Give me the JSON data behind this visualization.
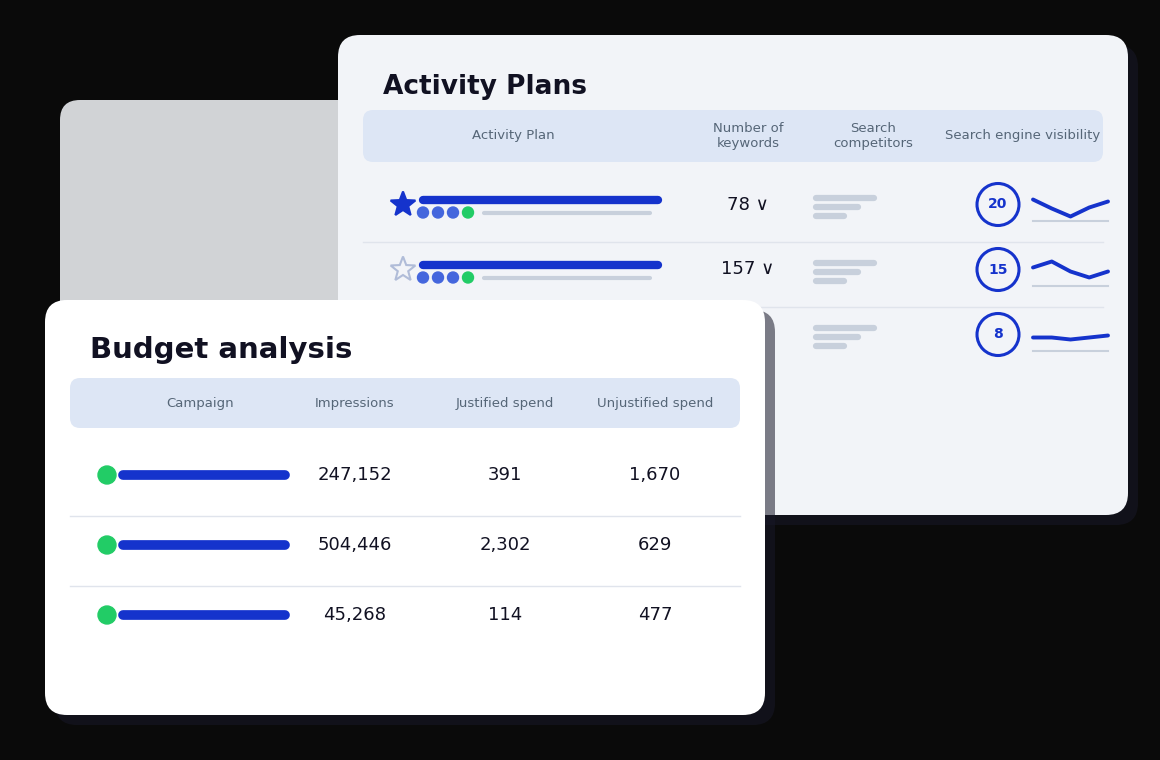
{
  "bg_color": "#0a0a0a",
  "activity_title": "Activity Plans",
  "activity_header_bg": "#dde6f5",
  "activity_headers": [
    "Activity Plan",
    "Number of\nkeywords",
    "Search\ncompetitors",
    "Search engine visibility"
  ],
  "activity_rows": [
    {
      "star_filled": true,
      "keywords": "78 ∨",
      "circle_num": "20"
    },
    {
      "star_filled": false,
      "keywords": "157 ∨",
      "circle_num": "15"
    },
    {
      "star_filled": false,
      "keywords": "",
      "circle_num": "8"
    }
  ],
  "budget_title": "Budget analysis",
  "budget_header_bg": "#dde6f5",
  "budget_headers": [
    "Campaign",
    "Impressions",
    "Justified spend",
    "Unjustified spend"
  ],
  "budget_rows": [
    {
      "impressions": "247,152",
      "justified": "391",
      "unjustified": "1,670"
    },
    {
      "impressions": "504,446",
      "justified": "2,302",
      "unjustified": "629"
    },
    {
      "impressions": "45,268",
      "justified": "114",
      "unjustified": "477"
    }
  ],
  "blue_dark": "#1533cc",
  "blue_mid": "#2244dd",
  "green_dot": "#22cc66",
  "star_blue": "#1533cc",
  "star_light": "#b0bcd8",
  "bar_blue": "#1533cc",
  "dot_blue": "#4466dd",
  "dot_green": "#22cc66",
  "bar_gray": "#c8d0dc",
  "line_blue": "#1533cc",
  "text_dark": "#111122",
  "text_col": "#556677",
  "divider": "#e0e4ec",
  "shadow": "#181828",
  "back_card_bg": "#f2f4f8",
  "front_card_bg": "#ffffff",
  "gray_card_bg": "#e8eaee"
}
